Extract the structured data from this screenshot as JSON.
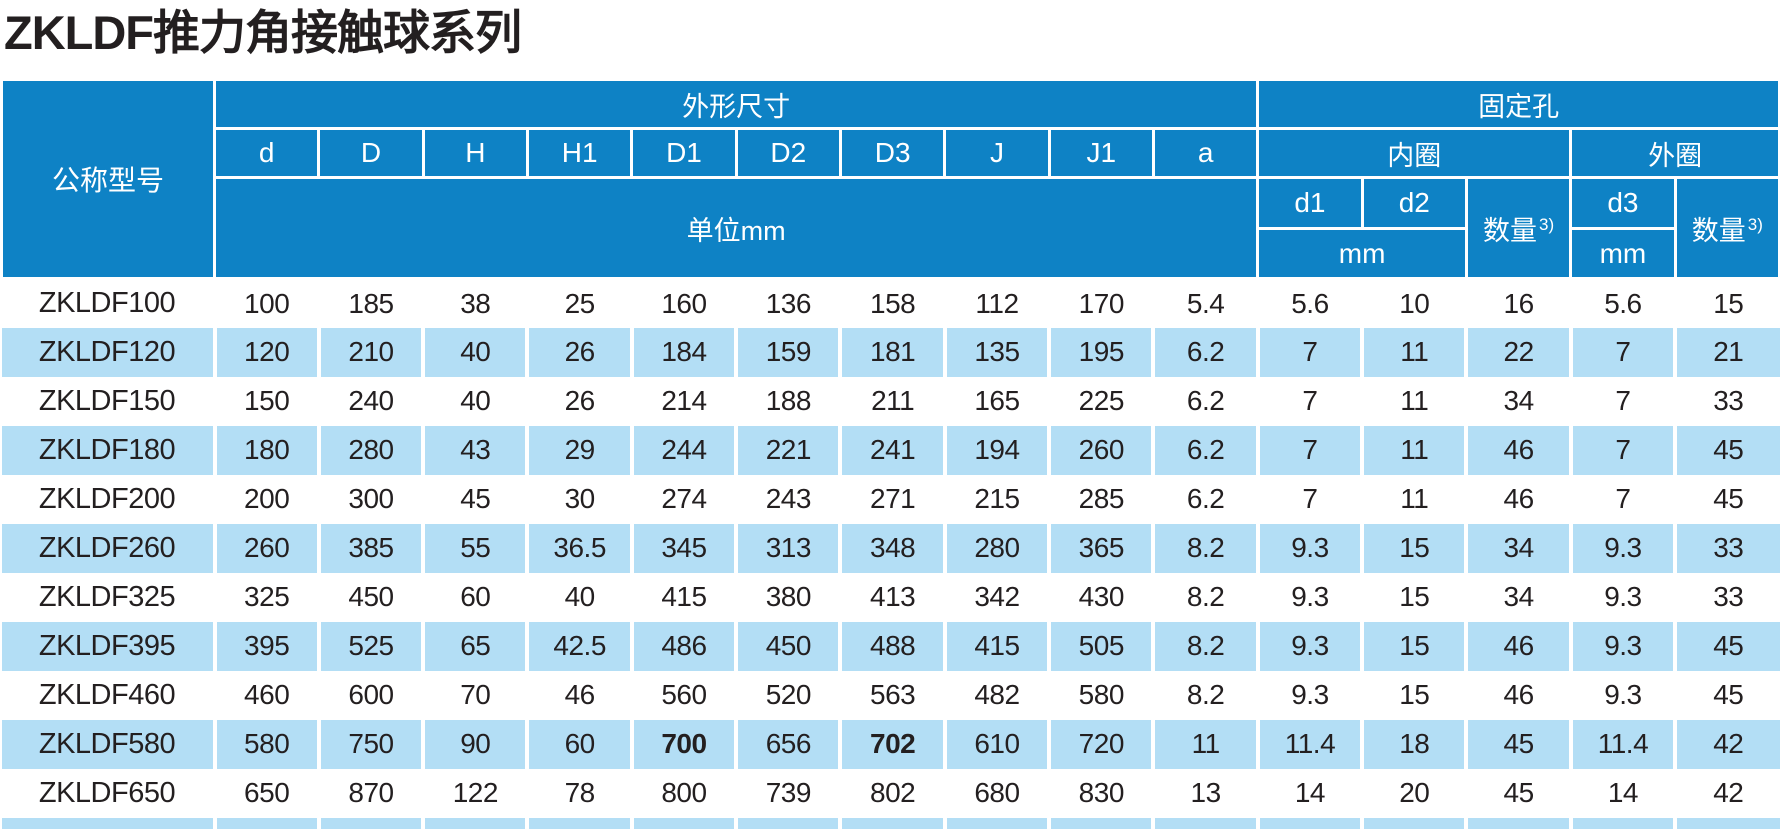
{
  "title": "ZKLDF推力角接触球系列",
  "colors": {
    "header_blue": "#0e82c5",
    "row_stripe_blue": "#b3def5",
    "text_dark": "#231f20",
    "separator_white": "#ffffff"
  },
  "table": {
    "model_header": "公称型号",
    "group_dims": "外形尺寸",
    "group_holes": "固定孔",
    "dim_columns": [
      "d",
      "D",
      "H",
      "H1",
      "D1",
      "D2",
      "D3",
      "J",
      "J1",
      "a"
    ],
    "unit_label": "单位mm",
    "inner_ring": "内圈",
    "outer_ring": "外圈",
    "qty_label": "数量",
    "qty_sup": "3)",
    "hole_cols": [
      "d1",
      "d2",
      "d3"
    ],
    "mm_label": "mm",
    "rows": [
      {
        "model": "ZKLDF100",
        "values": [
          "100",
          "185",
          "38",
          "25",
          "160",
          "136",
          "158",
          "112",
          "170",
          "5.4",
          "5.6",
          "10",
          "16",
          "5.6",
          "15"
        ]
      },
      {
        "model": "ZKLDF120",
        "values": [
          "120",
          "210",
          "40",
          "26",
          "184",
          "159",
          "181",
          "135",
          "195",
          "6.2",
          "7",
          "11",
          "22",
          "7",
          "21"
        ]
      },
      {
        "model": "ZKLDF150",
        "values": [
          "150",
          "240",
          "40",
          "26",
          "214",
          "188",
          "211",
          "165",
          "225",
          "6.2",
          "7",
          "11",
          "34",
          "7",
          "33"
        ]
      },
      {
        "model": "ZKLDF180",
        "values": [
          "180",
          "280",
          "43",
          "29",
          "244",
          "221",
          "241",
          "194",
          "260",
          "6.2",
          "7",
          "11",
          "46",
          "7",
          "45"
        ]
      },
      {
        "model": "ZKLDF200",
        "values": [
          "200",
          "300",
          "45",
          "30",
          "274",
          "243",
          "271",
          "215",
          "285",
          "6.2",
          "7",
          "11",
          "46",
          "7",
          "45"
        ]
      },
      {
        "model": "ZKLDF260",
        "values": [
          "260",
          "385",
          "55",
          "36.5",
          "345",
          "313",
          "348",
          "280",
          "365",
          "8.2",
          "9.3",
          "15",
          "34",
          "9.3",
          "33"
        ]
      },
      {
        "model": "ZKLDF325",
        "values": [
          "325",
          "450",
          "60",
          "40",
          "415",
          "380",
          "413",
          "342",
          "430",
          "8.2",
          "9.3",
          "15",
          "34",
          "9.3",
          "33"
        ]
      },
      {
        "model": "ZKLDF395",
        "values": [
          "395",
          "525",
          "65",
          "42.5",
          "486",
          "450",
          "488",
          "415",
          "505",
          "8.2",
          "9.3",
          "15",
          "46",
          "9.3",
          "45"
        ]
      },
      {
        "model": "ZKLDF460",
        "values": [
          "460",
          "600",
          "70",
          "46",
          "560",
          "520",
          "563",
          "482",
          "580",
          "8.2",
          "9.3",
          "15",
          "46",
          "9.3",
          "45"
        ]
      },
      {
        "model": "ZKLDF580",
        "values": [
          "580",
          "750",
          "90",
          "60",
          "700",
          "656",
          "702",
          "610",
          "720",
          "11",
          "11.4",
          "18",
          "45",
          "11.4",
          "42"
        ],
        "bold": [
          4,
          6
        ]
      },
      {
        "model": "ZKLDF650",
        "values": [
          "650",
          "870",
          "122",
          "78",
          "800",
          "739",
          "802",
          "680",
          "830",
          "13",
          "14",
          "20",
          "45",
          "14",
          "42"
        ]
      },
      {
        "model": "",
        "values": [
          "",
          "",
          "",
          "",
          "",
          "",
          "",
          "",
          "",
          "",
          "",
          "",
          "",
          "",
          ""
        ],
        "partial": true
      }
    ]
  }
}
